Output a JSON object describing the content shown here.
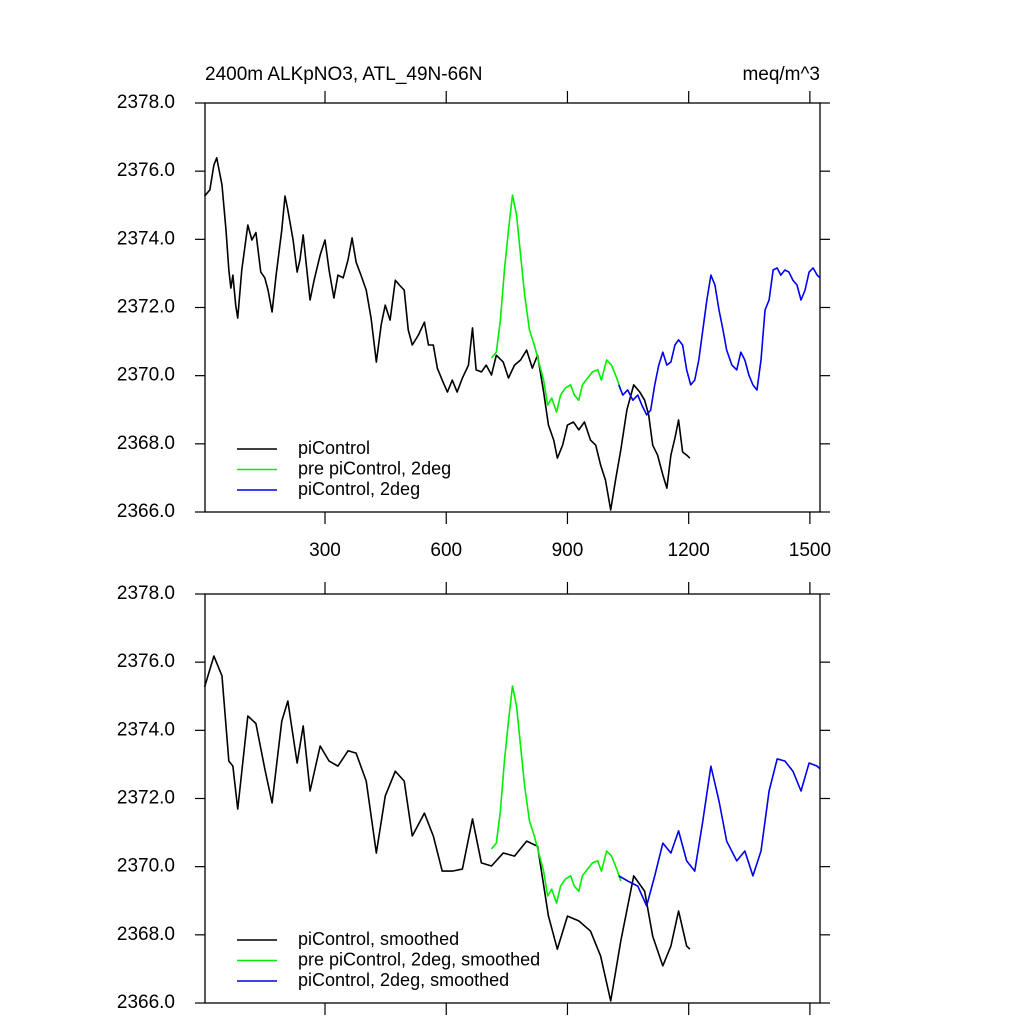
{
  "chart_data": [
    {
      "type": "line",
      "title": "2400m ALKpNO3, ATL_49N-66N",
      "units": "meq/m^3",
      "xlim": [
        3,
        1525
      ],
      "ylim": [
        2366,
        2378
      ],
      "xticks": [
        300,
        600,
        900,
        1200,
        1500
      ],
      "yticks": [
        {
          "value": 2366,
          "label": "2366.0"
        },
        {
          "value": 2368,
          "label": "2368.0"
        },
        {
          "value": 2370,
          "label": "2370.0"
        },
        {
          "value": 2372,
          "label": "2372.0"
        },
        {
          "value": 2374,
          "label": "2374.0"
        },
        {
          "value": 2376,
          "label": "2376.0"
        },
        {
          "value": 2378,
          "label": "2378.0"
        }
      ],
      "legend": "bottom-left",
      "series": [
        {
          "name": "piControl",
          "color": "#000000",
          "x": [
            2,
            15,
            25,
            32,
            45,
            55,
            62,
            67,
            72,
            79,
            84,
            94,
            109,
            119,
            129,
            141,
            151,
            159,
            169,
            179,
            193,
            201,
            208,
            221,
            231,
            238,
            246,
            253,
            263,
            273,
            288,
            300,
            310,
            322,
            332,
            345,
            357,
            367,
            377,
            389,
            402,
            414,
            427,
            439,
            449,
            461,
            474,
            484,
            496,
            506,
            516,
            531,
            546,
            556,
            568,
            578,
            590,
            603,
            615,
            627,
            640,
            655,
            665,
            674,
            687,
            699,
            712,
            724,
            741,
            754,
            769,
            784,
            799,
            813,
            826,
            841,
            853,
            866,
            875,
            888,
            900,
            915,
            928,
            942,
            957,
            970,
            982,
            994,
            1007,
            1019,
            1032,
            1047,
            1064,
            1079,
            1091,
            1101,
            1111,
            1123,
            1136,
            1146,
            1156,
            1166,
            1175,
            1185,
            1195,
            1203
          ],
          "values": [
            2375.27,
            2375.45,
            2376.18,
            2376.39,
            2375.6,
            2374.27,
            2373.1,
            2372.57,
            2372.95,
            2372.07,
            2371.69,
            2373.1,
            2374.42,
            2373.98,
            2374.2,
            2373.04,
            2372.87,
            2372.51,
            2371.87,
            2372.95,
            2374.27,
            2375.27,
            2374.86,
            2373.98,
            2373.04,
            2373.4,
            2374.13,
            2373.33,
            2372.22,
            2372.8,
            2373.54,
            2373.98,
            2373.1,
            2372.28,
            2372.95,
            2372.87,
            2373.4,
            2374.04,
            2373.33,
            2372.95,
            2372.51,
            2371.69,
            2370.4,
            2371.49,
            2372.07,
            2371.63,
            2372.8,
            2372.66,
            2372.51,
            2371.34,
            2370.9,
            2371.19,
            2371.57,
            2370.9,
            2370.9,
            2370.22,
            2369.87,
            2369.52,
            2369.87,
            2369.52,
            2369.93,
            2370.31,
            2371.4,
            2370.17,
            2370.11,
            2370.31,
            2370.02,
            2370.6,
            2370.4,
            2369.93,
            2370.31,
            2370.46,
            2370.75,
            2370.22,
            2370.6,
            2369.52,
            2368.55,
            2368.11,
            2367.58,
            2367.96,
            2368.55,
            2368.64,
            2368.41,
            2368.64,
            2368.11,
            2367.96,
            2367.38,
            2366.94,
            2366.06,
            2366.94,
            2367.82,
            2368.99,
            2369.73,
            2369.52,
            2369.28,
            2368.85,
            2367.96,
            2367.67,
            2367.09,
            2366.7,
            2367.67,
            2368.17,
            2368.7,
            2367.76,
            2367.67,
            2367.58
          ]
        },
        {
          "name": "pre piControl, 2deg",
          "color": "#00ee00",
          "x": [
            712,
            724,
            734,
            744,
            754,
            764,
            774,
            784,
            794,
            806,
            818,
            831,
            841,
            851,
            861,
            873,
            883,
            895,
            908,
            917,
            928,
            937,
            950,
            962,
            975,
            984,
            997,
            1009,
            1022,
            1032
          ],
          "values": [
            2370.52,
            2370.69,
            2371.63,
            2373.1,
            2374.27,
            2375.3,
            2374.71,
            2373.54,
            2372.37,
            2371.34,
            2370.9,
            2370.31,
            2369.87,
            2369.14,
            2369.34,
            2368.93,
            2369.43,
            2369.64,
            2369.73,
            2369.43,
            2369.28,
            2369.73,
            2369.93,
            2370.11,
            2370.17,
            2369.87,
            2370.46,
            2370.31,
            2369.93,
            2369.58
          ]
        },
        {
          "name": "piControl, 2deg",
          "color": "#0000ee",
          "x": [
            1027,
            1037,
            1049,
            1062,
            1074,
            1084,
            1096,
            1106,
            1116,
            1126,
            1136,
            1146,
            1156,
            1166,
            1175,
            1185,
            1195,
            1205,
            1215,
            1225,
            1235,
            1245,
            1255,
            1265,
            1275,
            1285,
            1294,
            1307,
            1319,
            1329,
            1339,
            1349,
            1359,
            1369,
            1379,
            1389,
            1399,
            1409,
            1419,
            1428,
            1438,
            1448,
            1458,
            1468,
            1478,
            1488,
            1498,
            1508,
            1518,
            1525
          ],
          "values": [
            2369.73,
            2369.43,
            2369.58,
            2369.28,
            2369.43,
            2369.14,
            2368.85,
            2368.99,
            2369.73,
            2370.31,
            2370.69,
            2370.31,
            2370.4,
            2370.9,
            2371.05,
            2370.9,
            2370.17,
            2369.73,
            2369.87,
            2370.46,
            2371.34,
            2372.22,
            2372.95,
            2372.66,
            2371.93,
            2371.34,
            2370.75,
            2370.31,
            2370.17,
            2370.69,
            2370.46,
            2370.02,
            2369.73,
            2369.58,
            2370.46,
            2371.93,
            2372.22,
            2373.1,
            2373.16,
            2372.95,
            2373.1,
            2373.04,
            2372.8,
            2372.66,
            2372.22,
            2372.51,
            2373.04,
            2373.16,
            2372.95,
            2372.87
          ]
        }
      ]
    },
    {
      "type": "line",
      "xlim": [
        3,
        1525
      ],
      "ylim": [
        2366,
        2378
      ],
      "xticks": [
        300,
        600,
        900,
        1200,
        1500
      ],
      "yticks": [
        {
          "value": 2366,
          "label": "2366.0"
        },
        {
          "value": 2368,
          "label": "2368.0"
        },
        {
          "value": 2370,
          "label": "2370.0"
        },
        {
          "value": 2372,
          "label": "2372.0"
        },
        {
          "value": 2374,
          "label": "2374.0"
        },
        {
          "value": 2376,
          "label": "2376.0"
        },
        {
          "value": 2378,
          "label": "2378.0"
        }
      ],
      "legend": "bottom-left",
      "series": [
        {
          "name": "piControl, smoothed",
          "color": "#000000",
          "x": [
            2,
            25,
            45,
            62,
            72,
            84,
            109,
            129,
            151,
            169,
            193,
            208,
            231,
            246,
            263,
            288,
            310,
            332,
            357,
            377,
            402,
            427,
            449,
            474,
            496,
            516,
            546,
            568,
            590,
            615,
            640,
            665,
            687,
            712,
            741,
            769,
            799,
            826,
            853,
            875,
            900,
            928,
            957,
            982,
            1007,
            1032,
            1064,
            1091,
            1111,
            1136,
            1156,
            1175,
            1195,
            1203
          ],
          "values": [
            2375.27,
            2376.18,
            2375.6,
            2373.1,
            2372.95,
            2371.69,
            2374.42,
            2374.2,
            2372.87,
            2371.87,
            2374.27,
            2374.86,
            2373.04,
            2374.13,
            2372.22,
            2373.54,
            2373.1,
            2372.95,
            2373.4,
            2373.33,
            2372.51,
            2370.4,
            2372.07,
            2372.8,
            2372.51,
            2370.9,
            2371.57,
            2370.9,
            2369.87,
            2369.87,
            2369.93,
            2371.4,
            2370.11,
            2370.02,
            2370.4,
            2370.31,
            2370.75,
            2370.6,
            2368.55,
            2367.58,
            2368.55,
            2368.41,
            2368.11,
            2367.38,
            2366.06,
            2367.82,
            2369.73,
            2369.28,
            2367.96,
            2367.09,
            2367.67,
            2368.7,
            2367.67,
            2367.58
          ]
        },
        {
          "name": "pre piControl, 2deg, smoothed",
          "color": "#00ee00",
          "x": [
            712,
            724,
            734,
            744,
            754,
            764,
            774,
            784,
            794,
            806,
            818,
            831,
            841,
            851,
            861,
            873,
            883,
            895,
            908,
            917,
            928,
            937,
            950,
            962,
            975,
            984,
            997,
            1009,
            1022,
            1032
          ],
          "values": [
            2370.52,
            2370.69,
            2371.63,
            2373.1,
            2374.27,
            2375.3,
            2374.71,
            2373.54,
            2372.37,
            2371.34,
            2370.9,
            2370.31,
            2369.87,
            2369.14,
            2369.34,
            2368.93,
            2369.43,
            2369.64,
            2369.73,
            2369.43,
            2369.28,
            2369.73,
            2369.93,
            2370.11,
            2370.17,
            2369.87,
            2370.46,
            2370.31,
            2369.93,
            2369.58
          ]
        },
        {
          "name": "piControl, 2deg, smoothed",
          "color": "#0000ee",
          "x": [
            1027,
            1049,
            1074,
            1096,
            1116,
            1136,
            1156,
            1175,
            1195,
            1215,
            1235,
            1255,
            1275,
            1294,
            1319,
            1339,
            1359,
            1379,
            1399,
            1419,
            1438,
            1458,
            1478,
            1498,
            1518,
            1525
          ],
          "values": [
            2369.73,
            2369.58,
            2369.43,
            2368.85,
            2369.73,
            2370.69,
            2370.4,
            2371.05,
            2370.17,
            2369.87,
            2371.34,
            2372.95,
            2371.93,
            2370.75,
            2370.17,
            2370.46,
            2369.73,
            2370.46,
            2372.22,
            2373.16,
            2373.1,
            2372.8,
            2372.22,
            2373.04,
            2372.95,
            2372.87
          ]
        }
      ]
    }
  ]
}
